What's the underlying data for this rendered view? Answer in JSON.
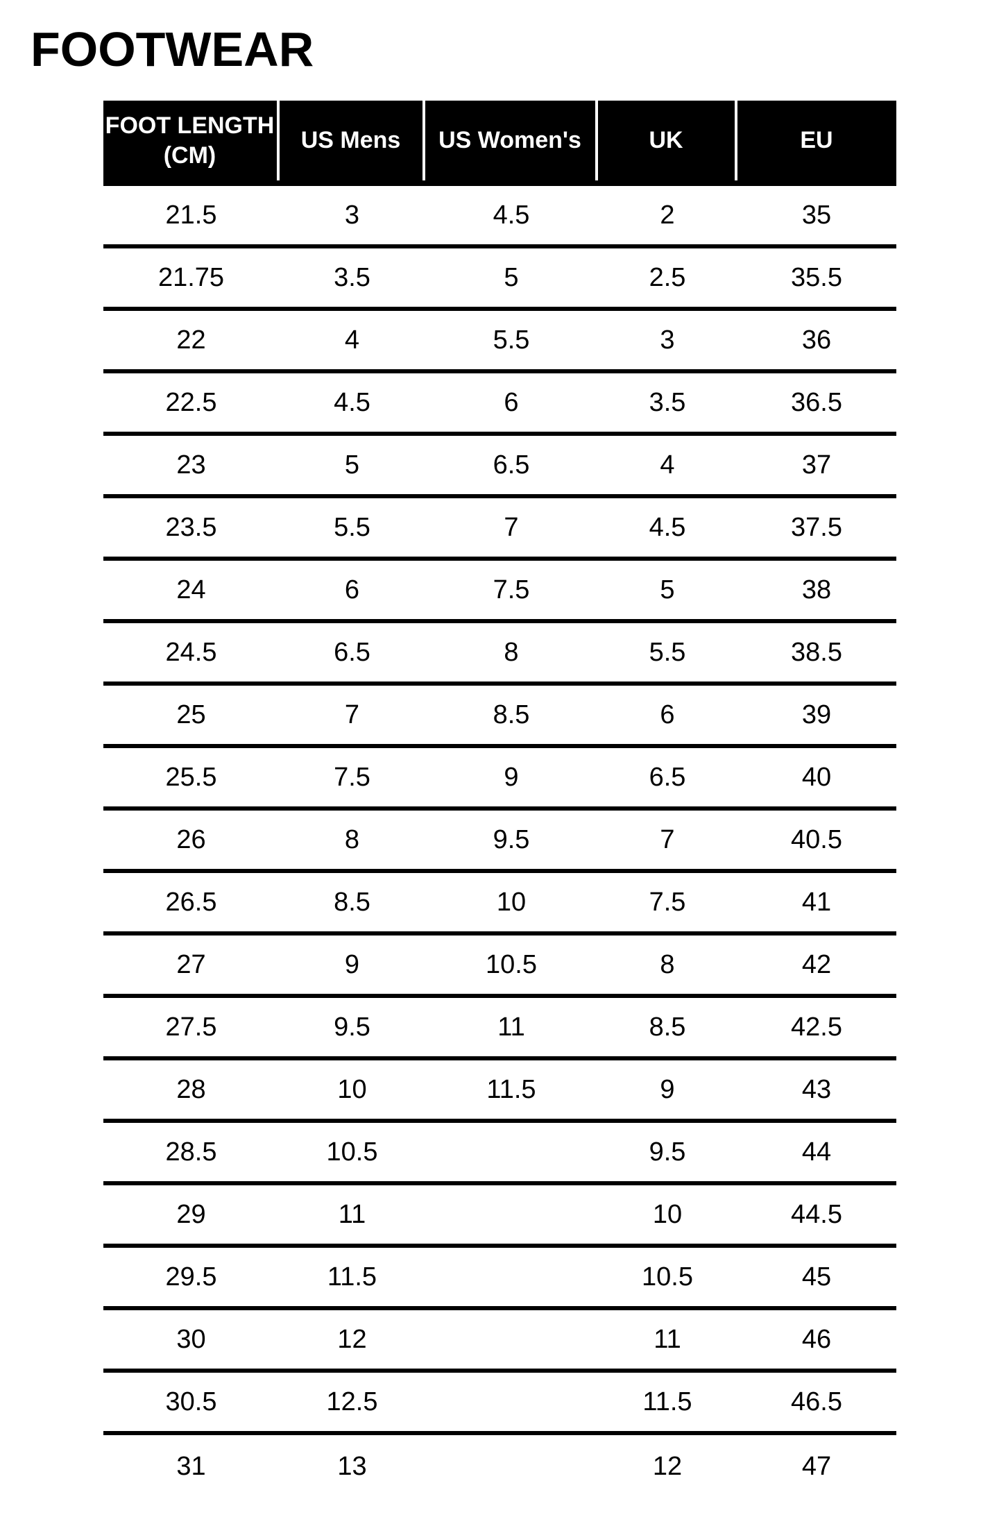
{
  "page": {
    "title": "FOOTWEAR"
  },
  "colors": {
    "page_bg": "#ffffff",
    "header_bg": "#000000",
    "header_text": "#ffffff",
    "cell_text": "#000000",
    "row_separator": "#000000"
  },
  "table": {
    "columns": [
      {
        "key": "foot_length_cm",
        "label": "FOOT LENGTH\n(CM)"
      },
      {
        "key": "us_mens",
        "label": "US Mens"
      },
      {
        "key": "us_womens",
        "label": "US Women's"
      },
      {
        "key": "uk",
        "label": "UK"
      },
      {
        "key": "eu",
        "label": "EU"
      }
    ],
    "rows": [
      [
        "21.5",
        "3",
        "4.5",
        "2",
        "35"
      ],
      [
        "21.75",
        "3.5",
        "5",
        "2.5",
        "35.5"
      ],
      [
        "22",
        "4",
        "5.5",
        "3",
        "36"
      ],
      [
        "22.5",
        "4.5",
        "6",
        "3.5",
        "36.5"
      ],
      [
        "23",
        "5",
        "6.5",
        "4",
        "37"
      ],
      [
        "23.5",
        "5.5",
        "7",
        "4.5",
        "37.5"
      ],
      [
        "24",
        "6",
        "7.5",
        "5",
        "38"
      ],
      [
        "24.5",
        "6.5",
        "8",
        "5.5",
        "38.5"
      ],
      [
        "25",
        "7",
        "8.5",
        "6",
        "39"
      ],
      [
        "25.5",
        "7.5",
        "9",
        "6.5",
        "40"
      ],
      [
        "26",
        "8",
        "9.5",
        "7",
        "40.5"
      ],
      [
        "26.5",
        "8.5",
        "10",
        "7.5",
        "41"
      ],
      [
        "27",
        "9",
        "10.5",
        "8",
        "42"
      ],
      [
        "27.5",
        "9.5",
        "11",
        "8.5",
        "42.5"
      ],
      [
        "28",
        "10",
        "11.5",
        "9",
        "43"
      ],
      [
        "28.5",
        "10.5",
        "",
        "9.5",
        "44"
      ],
      [
        "29",
        "11",
        "",
        "10",
        "44.5"
      ],
      [
        "29.5",
        "11.5",
        "",
        "10.5",
        "45"
      ],
      [
        "30",
        "12",
        "",
        "11",
        "46"
      ],
      [
        "30.5",
        "12.5",
        "",
        "11.5",
        "46.5"
      ],
      [
        "31",
        "13",
        "",
        "12",
        "47"
      ]
    ]
  }
}
